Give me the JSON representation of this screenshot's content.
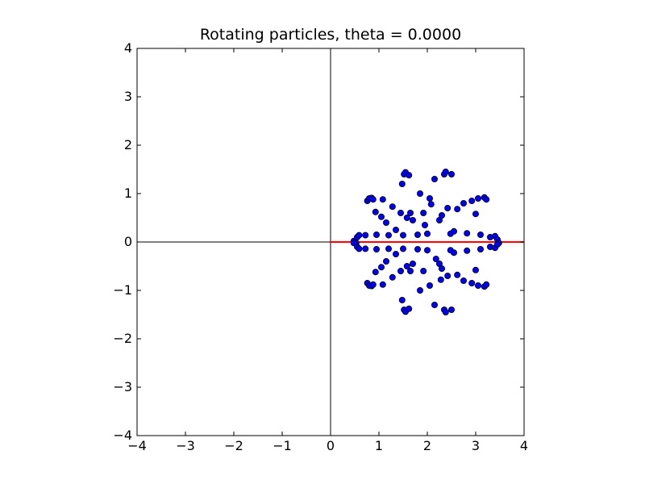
{
  "chart_data": {
    "type": "scatter",
    "title": "Rotating particles, theta =   0.0000",
    "xlabel": "",
    "ylabel": "",
    "xlim": [
      -4,
      4
    ],
    "ylim": [
      -4,
      4
    ],
    "xticks": [
      -4,
      -3,
      -2,
      -1,
      0,
      1,
      2,
      3,
      4
    ],
    "yticks": [
      -4,
      -3,
      -2,
      -1,
      0,
      1,
      2,
      3,
      4
    ],
    "xtick_labels": [
      "−4",
      "−3",
      "−2",
      "−1",
      "0",
      "1",
      "2",
      "3",
      "4"
    ],
    "ytick_labels": [
      "−4",
      "−3",
      "−2",
      "−1",
      "0",
      "1",
      "2",
      "3",
      "4"
    ],
    "grid": false,
    "legend": "none",
    "axis_lines": [
      {
        "name": "x-axis-line",
        "from": [
          -4,
          0
        ],
        "to": [
          4,
          0
        ],
        "color": "#000000"
      },
      {
        "name": "y-axis-line",
        "from": [
          0,
          -4
        ],
        "to": [
          0,
          4
        ],
        "color": "#000000"
      }
    ],
    "ray": {
      "from": [
        0,
        0
      ],
      "to": [
        4,
        0
      ],
      "color": "#ff0000"
    },
    "series": [
      {
        "marker_color": "#0000ff",
        "edge_color": "#000000",
        "x": [
          0.48,
          0.55,
          0.53,
          0.59,
          0.72,
          0.76,
          0.8,
          0.85,
          0.88,
          0.93,
          0.95,
          1.05,
          1.08,
          1.15,
          1.2,
          1.28,
          1.35,
          1.45,
          1.5,
          1.48,
          1.52,
          1.55,
          1.58,
          1.62,
          1.65,
          1.7,
          1.8,
          1.85,
          1.92,
          2.0,
          2.05,
          2.15,
          2.25,
          2.3,
          2.35,
          2.38,
          2.42,
          2.48,
          2.5,
          2.55,
          2.62,
          2.75,
          2.82,
          2.92,
          3.0,
          3.05,
          3.1,
          3.18,
          3.22,
          3.3,
          3.4,
          3.45,
          3.48,
          0.48,
          0.55,
          0.59,
          0.72,
          0.76,
          0.8,
          0.85,
          0.88,
          0.93,
          0.95,
          1.05,
          1.08,
          1.15,
          1.2,
          1.28,
          1.35,
          1.45,
          1.5,
          1.48,
          1.52,
          1.55,
          1.58,
          1.62,
          1.65,
          1.7,
          1.8,
          1.85,
          1.92,
          2.0,
          2.05,
          2.15,
          2.25,
          2.3,
          2.35,
          2.38,
          2.42,
          2.48,
          2.5,
          2.55,
          2.62,
          2.75,
          2.82,
          2.92,
          3.0,
          3.05,
          3.1,
          3.18,
          3.22,
          3.3,
          3.4,
          3.45,
          1.95,
          2.08,
          2.18,
          2.28
        ],
        "y": [
          0.02,
          0.1,
          -0.02,
          0.14,
          0.14,
          0.85,
          0.9,
          0.91,
          0.88,
          0.62,
          0.15,
          0.52,
          0.88,
          0.4,
          0.14,
          0.73,
          0.25,
          0.6,
          0.14,
          1.2,
          1.4,
          1.44,
          0.5,
          1.38,
          0.6,
          0.45,
          0.15,
          1.0,
          0.6,
          0.17,
          0.9,
          1.3,
          0.45,
          0.55,
          1.4,
          1.45,
          0.7,
          0.17,
          1.4,
          0.22,
          0.68,
          0.8,
          0.18,
          0.85,
          0.58,
          0.9,
          0.15,
          0.92,
          0.88,
          0.1,
          0.12,
          0.05,
          -0.02,
          -0.02,
          -0.1,
          -0.14,
          -0.14,
          -0.85,
          -0.9,
          -0.91,
          -0.88,
          -0.62,
          -0.15,
          -0.52,
          -0.88,
          -0.4,
          -0.14,
          -0.73,
          -0.25,
          -0.6,
          -0.14,
          -1.2,
          -1.4,
          -1.44,
          -0.5,
          -1.38,
          -0.6,
          -0.45,
          -0.15,
          -1.0,
          -0.6,
          -0.17,
          -0.9,
          -1.3,
          -0.45,
          -0.55,
          -1.4,
          -1.45,
          -0.7,
          -0.17,
          -1.4,
          -0.22,
          -0.68,
          -0.8,
          -0.18,
          -0.85,
          -0.58,
          -0.9,
          -0.15,
          -0.92,
          -0.88,
          -0.1,
          -0.12,
          -0.05,
          0.35,
          0.78,
          -0.35,
          -0.78
        ]
      }
    ]
  }
}
